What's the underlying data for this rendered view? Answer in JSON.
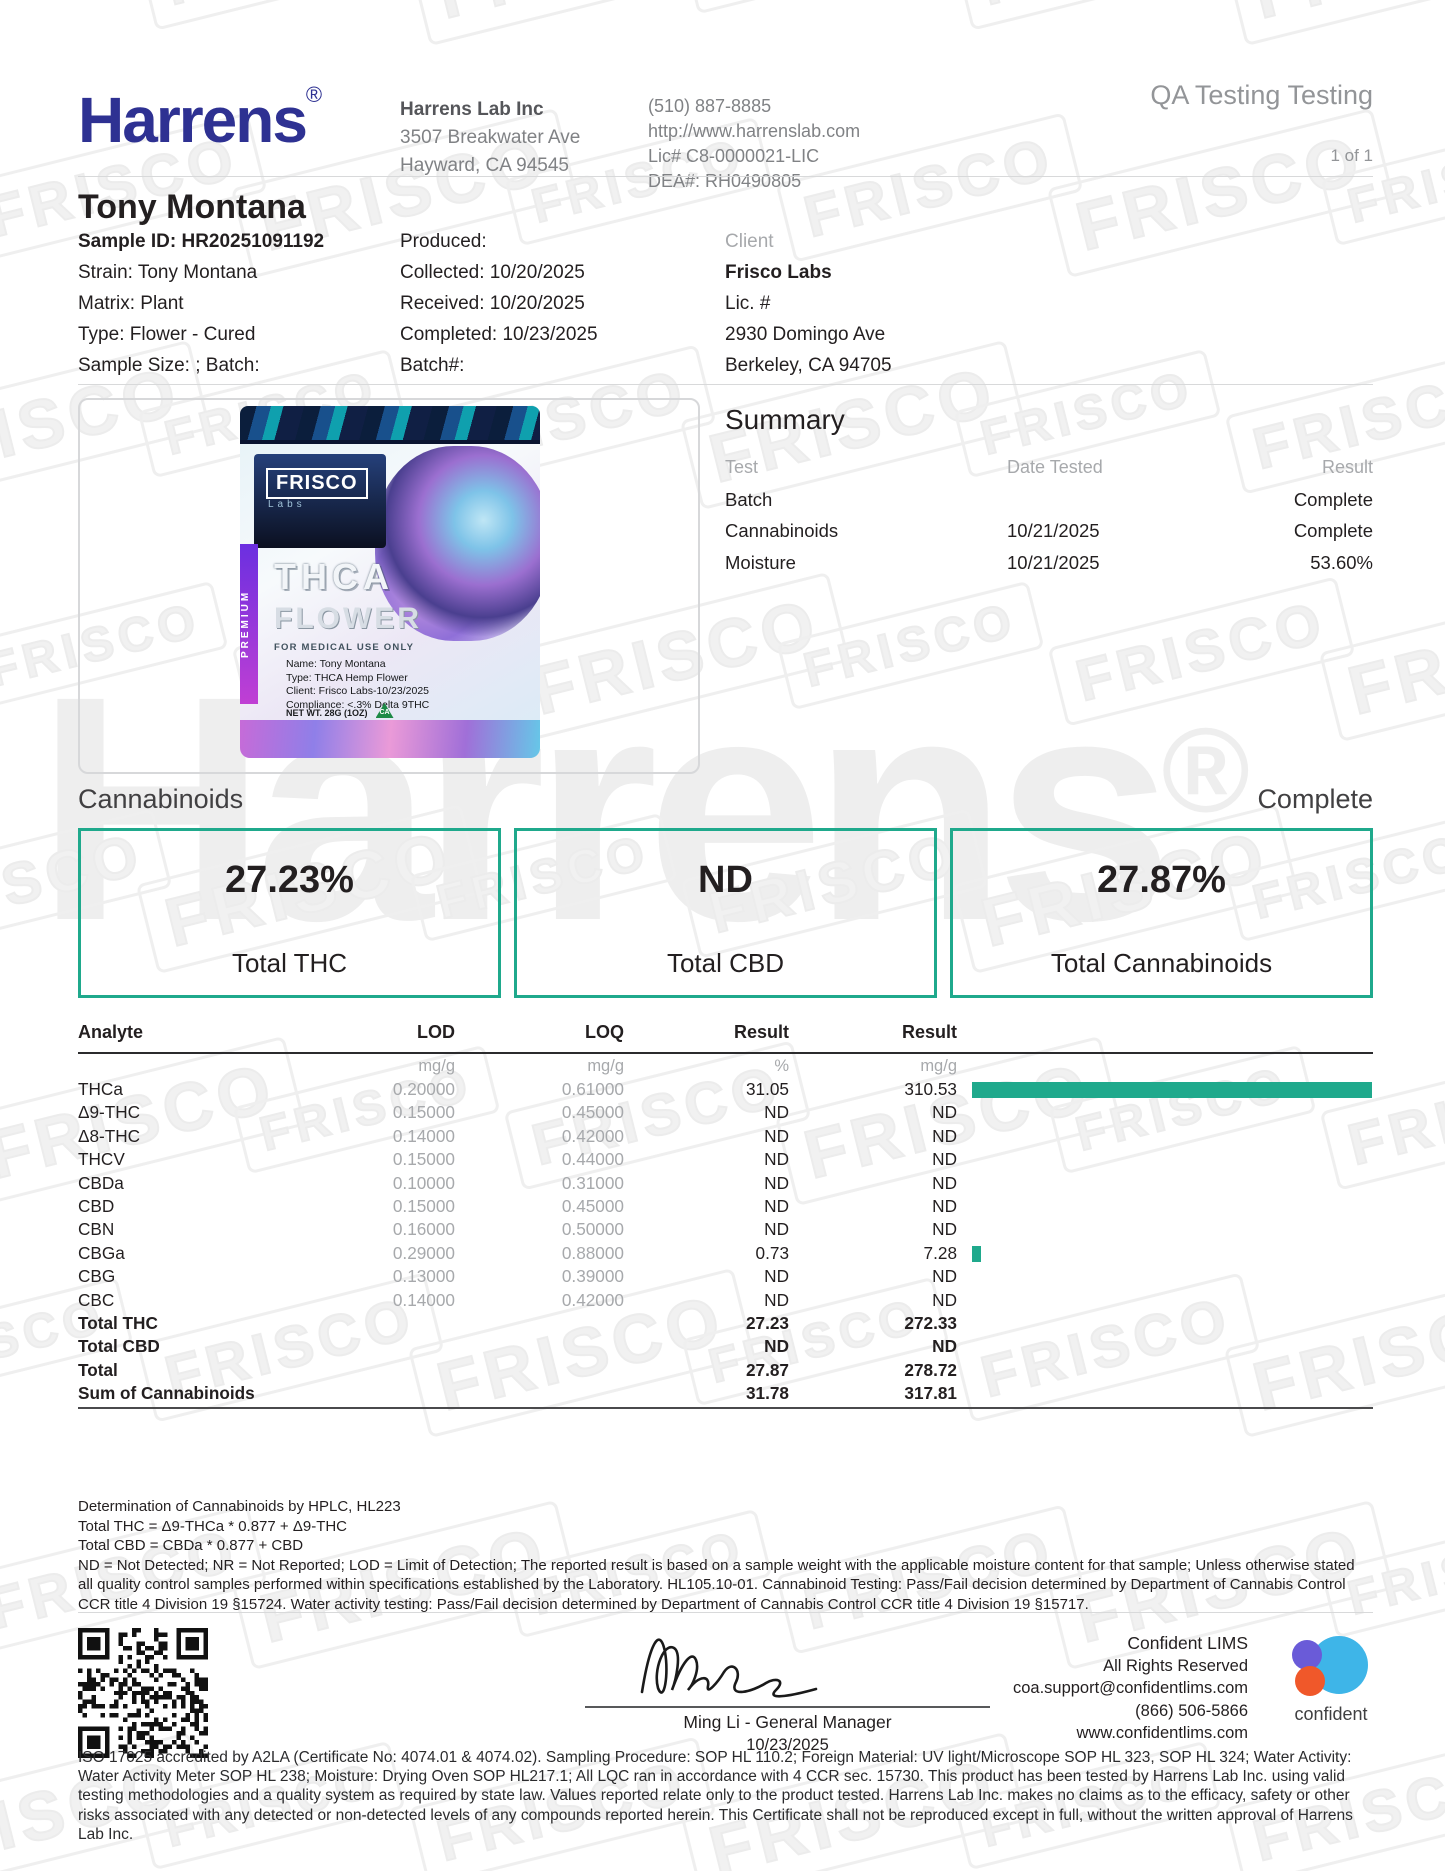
{
  "watermark": {
    "stamp": "FRISCO",
    "brand": "Harrens",
    "reg": "®"
  },
  "header": {
    "logo": "Harrens",
    "logo_reg": "®",
    "lab": {
      "name": "Harrens Lab Inc",
      "address1": "3507 Breakwater Ave",
      "address2": "Hayward, CA 94545"
    },
    "contact": {
      "phone": "(510) 887-8885",
      "website": "http://www.harrenslab.com",
      "license": "Lic# C8-0000021-LIC",
      "dea": "DEA#: RH0490805"
    },
    "report_type": "QA Testing Testing",
    "page_indicator": "1 of 1"
  },
  "sample": {
    "title": "Tony Montana",
    "col1": [
      "Sample ID: HR20251091192",
      "Strain: Tony Montana",
      "Matrix: Plant",
      "Type: Flower - Cured",
      "Sample Size: ; Batch:"
    ],
    "col2": [
      "Produced:",
      "Collected: 10/20/2025",
      "Received: 10/20/2025",
      "Completed: 10/23/2025",
      "Batch#:"
    ],
    "client": {
      "label": "Client",
      "name": "Frisco Labs",
      "license": "Lic. #",
      "address1": "2930 Domingo Ave",
      "address2": "Berkeley, CA 94705"
    }
  },
  "product_image": {
    "brand": "FRISCO",
    "brand_sub": "Labs",
    "strip": "PREMIUM",
    "line1": "THCA",
    "line2": "FLOWER",
    "notice": "FOR MEDICAL USE ONLY",
    "label_lines": [
      "Name: Tony Montana",
      "Type: THCA Hemp Flower",
      "Client: Frisco Labs-10/23/2025",
      "Compliance: <.3% Delta 9THC"
    ],
    "net_wt": "NET WT. 28G (1OZ)",
    "ca_mark": "CA"
  },
  "summary": {
    "title": "Summary",
    "columns": [
      "Test",
      "Date Tested",
      "Result"
    ],
    "rows": [
      {
        "test": "Batch",
        "date": "",
        "result": "Complete"
      },
      {
        "test": "Cannabinoids",
        "date": "10/21/2025",
        "result": "Complete"
      },
      {
        "test": "Moisture",
        "date": "10/21/2025",
        "result": "53.60%"
      }
    ]
  },
  "cannabinoids": {
    "title": "Cannabinoids",
    "status": "Complete",
    "highlights": [
      {
        "value": "27.23%",
        "label": "Total THC"
      },
      {
        "value": "ND",
        "label": "Total CBD"
      },
      {
        "value": "27.87%",
        "label": "Total Cannabinoids"
      }
    ],
    "table": {
      "columns": [
        "Analyte",
        "LOD",
        "LOQ",
        "Result",
        "Result"
      ],
      "units": [
        "",
        "mg/g",
        "mg/g",
        "%",
        "mg/g"
      ],
      "bar_color": "#1fa98c",
      "bar_scale_max": 310.53,
      "rows": [
        {
          "analyte": "THCa",
          "lod": "0.20000",
          "loq": "0.61000",
          "result_pct": "31.05",
          "result_mgg": "310.53",
          "bar": 310.53,
          "bold": false
        },
        {
          "analyte": "Δ9-THC",
          "lod": "0.15000",
          "loq": "0.45000",
          "result_pct": "ND",
          "result_mgg": "ND",
          "bar": 0,
          "bold": false
        },
        {
          "analyte": "Δ8-THC",
          "lod": "0.14000",
          "loq": "0.42000",
          "result_pct": "ND",
          "result_mgg": "ND",
          "bar": 0,
          "bold": false
        },
        {
          "analyte": "THCV",
          "lod": "0.15000",
          "loq": "0.44000",
          "result_pct": "ND",
          "result_mgg": "ND",
          "bar": 0,
          "bold": false
        },
        {
          "analyte": "CBDa",
          "lod": "0.10000",
          "loq": "0.31000",
          "result_pct": "ND",
          "result_mgg": "ND",
          "bar": 0,
          "bold": false
        },
        {
          "analyte": "CBD",
          "lod": "0.15000",
          "loq": "0.45000",
          "result_pct": "ND",
          "result_mgg": "ND",
          "bar": 0,
          "bold": false
        },
        {
          "analyte": "CBN",
          "lod": "0.16000",
          "loq": "0.50000",
          "result_pct": "ND",
          "result_mgg": "ND",
          "bar": 0,
          "bold": false
        },
        {
          "analyte": "CBGa",
          "lod": "0.29000",
          "loq": "0.88000",
          "result_pct": "0.73",
          "result_mgg": "7.28",
          "bar": 7.28,
          "bold": false
        },
        {
          "analyte": "CBG",
          "lod": "0.13000",
          "loq": "0.39000",
          "result_pct": "ND",
          "result_mgg": "ND",
          "bar": 0,
          "bold": false
        },
        {
          "analyte": "CBC",
          "lod": "0.14000",
          "loq": "0.42000",
          "result_pct": "ND",
          "result_mgg": "ND",
          "bar": 0,
          "bold": false
        },
        {
          "analyte": "Total THC",
          "lod": "",
          "loq": "",
          "result_pct": "27.23",
          "result_mgg": "272.33",
          "bar": 0,
          "bold": true
        },
        {
          "analyte": "Total CBD",
          "lod": "",
          "loq": "",
          "result_pct": "ND",
          "result_mgg": "ND",
          "bar": 0,
          "bold": true
        },
        {
          "analyte": "Total",
          "lod": "",
          "loq": "",
          "result_pct": "27.87",
          "result_mgg": "278.72",
          "bar": 0,
          "bold": true
        },
        {
          "analyte": "Sum of Cannabinoids",
          "lod": "",
          "loq": "",
          "result_pct": "31.78",
          "result_mgg": "317.81",
          "bar": 0,
          "bold": true
        }
      ]
    }
  },
  "footnotes": {
    "lines": [
      "Determination of Cannabinoids by HPLC, HL223",
      "Total THC = Δ9-THCa * 0.877 + Δ9-THC",
      "Total CBD = CBDa * 0.877 + CBD"
    ],
    "paragraph": "ND = Not Detected; NR = Not Reported; LOD = Limit of Detection; The reported result is based on a sample weight with the applicable moisture content for that sample; Unless otherwise stated all quality control samples performed within specifications established by the Laboratory. HL105.10-01. Cannabinoid Testing: Pass/Fail decision determined by Department of Cannabis Control CCR title 4 Division 19 §15724. Water activity testing: Pass/Fail decision determined by Department of Cannabis Control CCR title 4 Division 19 §15717."
  },
  "signoff": {
    "signer": "Ming Li - General Manager",
    "date": "10/23/2025"
  },
  "lims": {
    "name": "Confident LIMS",
    "rights": "All Rights Reserved",
    "email": "coa.support@confidentlims.com",
    "phone": "(866) 506-5866",
    "website": "www.confidentlims.com",
    "logo_text": "confident"
  },
  "iso_note": "ISO 17025 accredited by A2LA (Certificate No: 4074.01 & 4074.02). Sampling Procedure: SOP HL 110.2; Foreign Material: UV light/Microscope SOP HL 323, SOP HL 324; Water Activity: Water Activity Meter SOP HL 238; Moisture: Drying Oven SOP HL217.1; All LQC ran in accordance with 4 CCR sec. 15730. This product has been tested by Harrens Lab Inc. using valid testing methodologies and a quality system as required by state law. Values reported relate only to the product tested. Harrens Lab Inc. makes no claims as to the efficacy, safety or other risks associated with any detected or non-detected levels of any compounds reported herein. This Certificate shall not be reproduced except in full, without the written approval of Harrens Lab Inc."
}
